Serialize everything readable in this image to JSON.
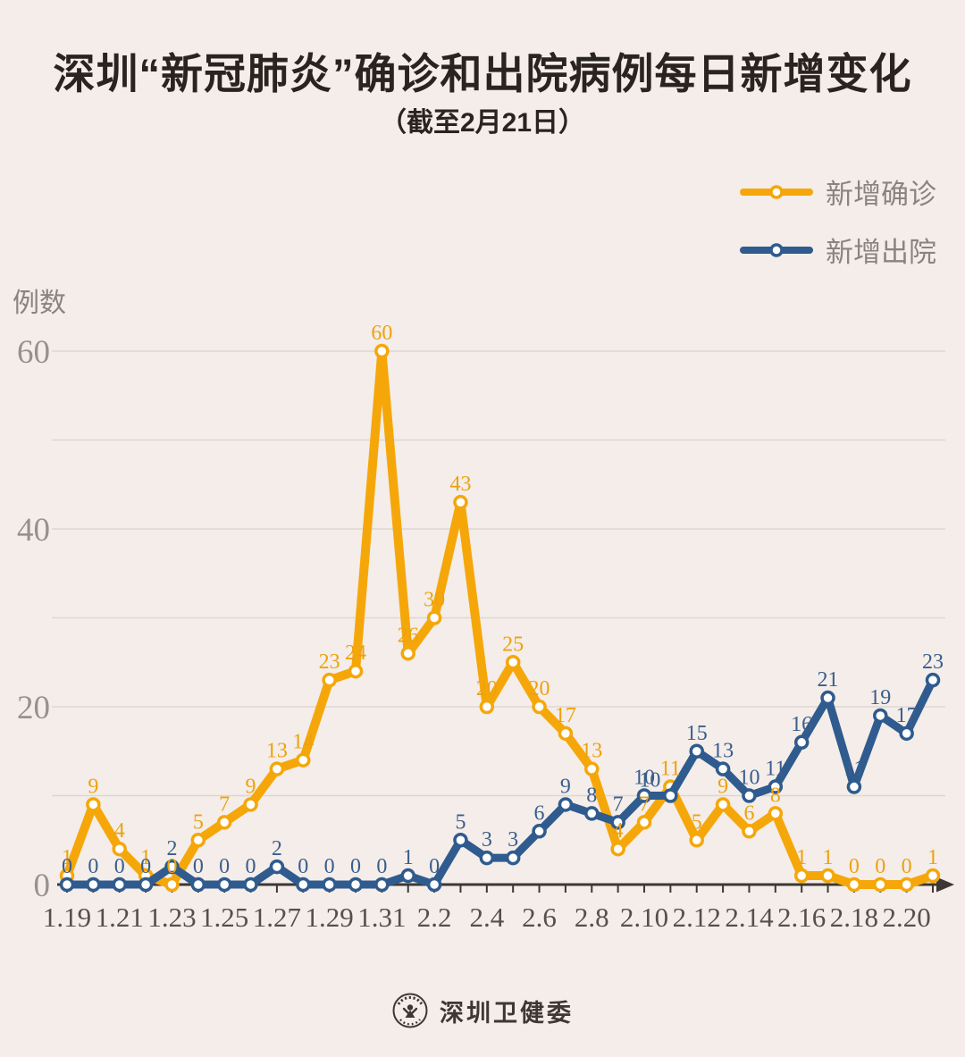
{
  "title": "深圳“新冠肺炎”确诊和出院病例每日新增变化",
  "subtitle": "（截至2月21日）",
  "y_axis_unit": "例数",
  "footer": {
    "source": "深圳卫健委"
  },
  "colors": {
    "background": "#f4ede9",
    "confirmed": "#f5a70a",
    "confirmed_label": "#eda20d",
    "discharged": "#2f5b8e",
    "discharged_label": "#3a5e8c",
    "axis": "#3d3834",
    "x_tick_label": "#55504c",
    "y_tick_label": "#97918b",
    "gridline": "#ded7d1",
    "legend_text": "#8b847e"
  },
  "chart_data": {
    "type": "line",
    "title": "深圳“新冠肺炎”确诊和出院病例每日新增变化（截至2月21日）",
    "ylabel": "例数",
    "ylim": [
      0,
      60
    ],
    "y_ticks_labeled": [
      0,
      20,
      40,
      60
    ],
    "grid_interval": 10,
    "grid": true,
    "legend_position": "top-right",
    "x_label_every": 2,
    "x": [
      "1.19",
      "1.20",
      "1.21",
      "1.22",
      "1.23",
      "1.24",
      "1.25",
      "1.26",
      "1.27",
      "1.28",
      "1.29",
      "1.30",
      "1.31",
      "2.1",
      "2.2",
      "2.3",
      "2.4",
      "2.5",
      "2.6",
      "2.7",
      "2.8",
      "2.9",
      "2.10",
      "2.11",
      "2.12",
      "2.13",
      "2.14",
      "2.15",
      "2.16",
      "2.17",
      "2.18",
      "2.19",
      "2.20",
      "2.21"
    ],
    "series": [
      {
        "name": "新增确诊",
        "color": "#f5a70a",
        "label_color": "#eda20d",
        "values": [
          1,
          9,
          4,
          1,
          0,
          5,
          7,
          9,
          13,
          14,
          23,
          24,
          60,
          26,
          30,
          43,
          20,
          25,
          20,
          17,
          13,
          4,
          7,
          11,
          5,
          9,
          6,
          8,
          1,
          1,
          0,
          0,
          0,
          1
        ]
      },
      {
        "name": "新增出院",
        "color": "#2f5b8e",
        "label_color": "#3a5e8c",
        "values": [
          0,
          0,
          0,
          0,
          2,
          0,
          0,
          0,
          2,
          0,
          0,
          0,
          0,
          1,
          0,
          5,
          3,
          3,
          6,
          9,
          8,
          7,
          10,
          10,
          15,
          13,
          10,
          11,
          16,
          21,
          11,
          19,
          17,
          23
        ]
      }
    ],
    "label_overrides": [
      {
        "series": 1,
        "index": 23,
        "dx": -23,
        "dy": 3
      }
    ]
  }
}
